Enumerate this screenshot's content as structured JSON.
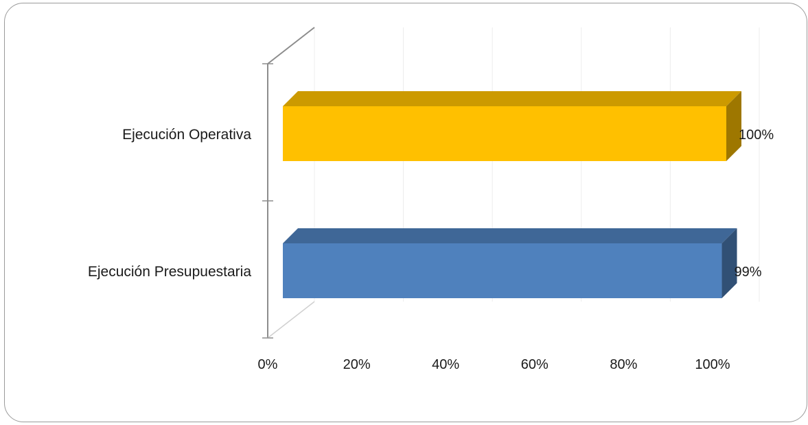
{
  "chart_data": {
    "type": "bar",
    "orientation": "horizontal",
    "style": "3d",
    "categories": [
      "Ejecución Operativa",
      "Ejecución Presupuestaria"
    ],
    "values": [
      1.0,
      0.99
    ],
    "data_labels": [
      "100%",
      "99%"
    ],
    "colors": [
      "#ffc000",
      "#4f81bd"
    ],
    "x_ticks": [
      "0%",
      "20%",
      "40%",
      "60%",
      "80%",
      "100%"
    ],
    "xlim": [
      0,
      1
    ],
    "grid": true,
    "legend": "none"
  }
}
